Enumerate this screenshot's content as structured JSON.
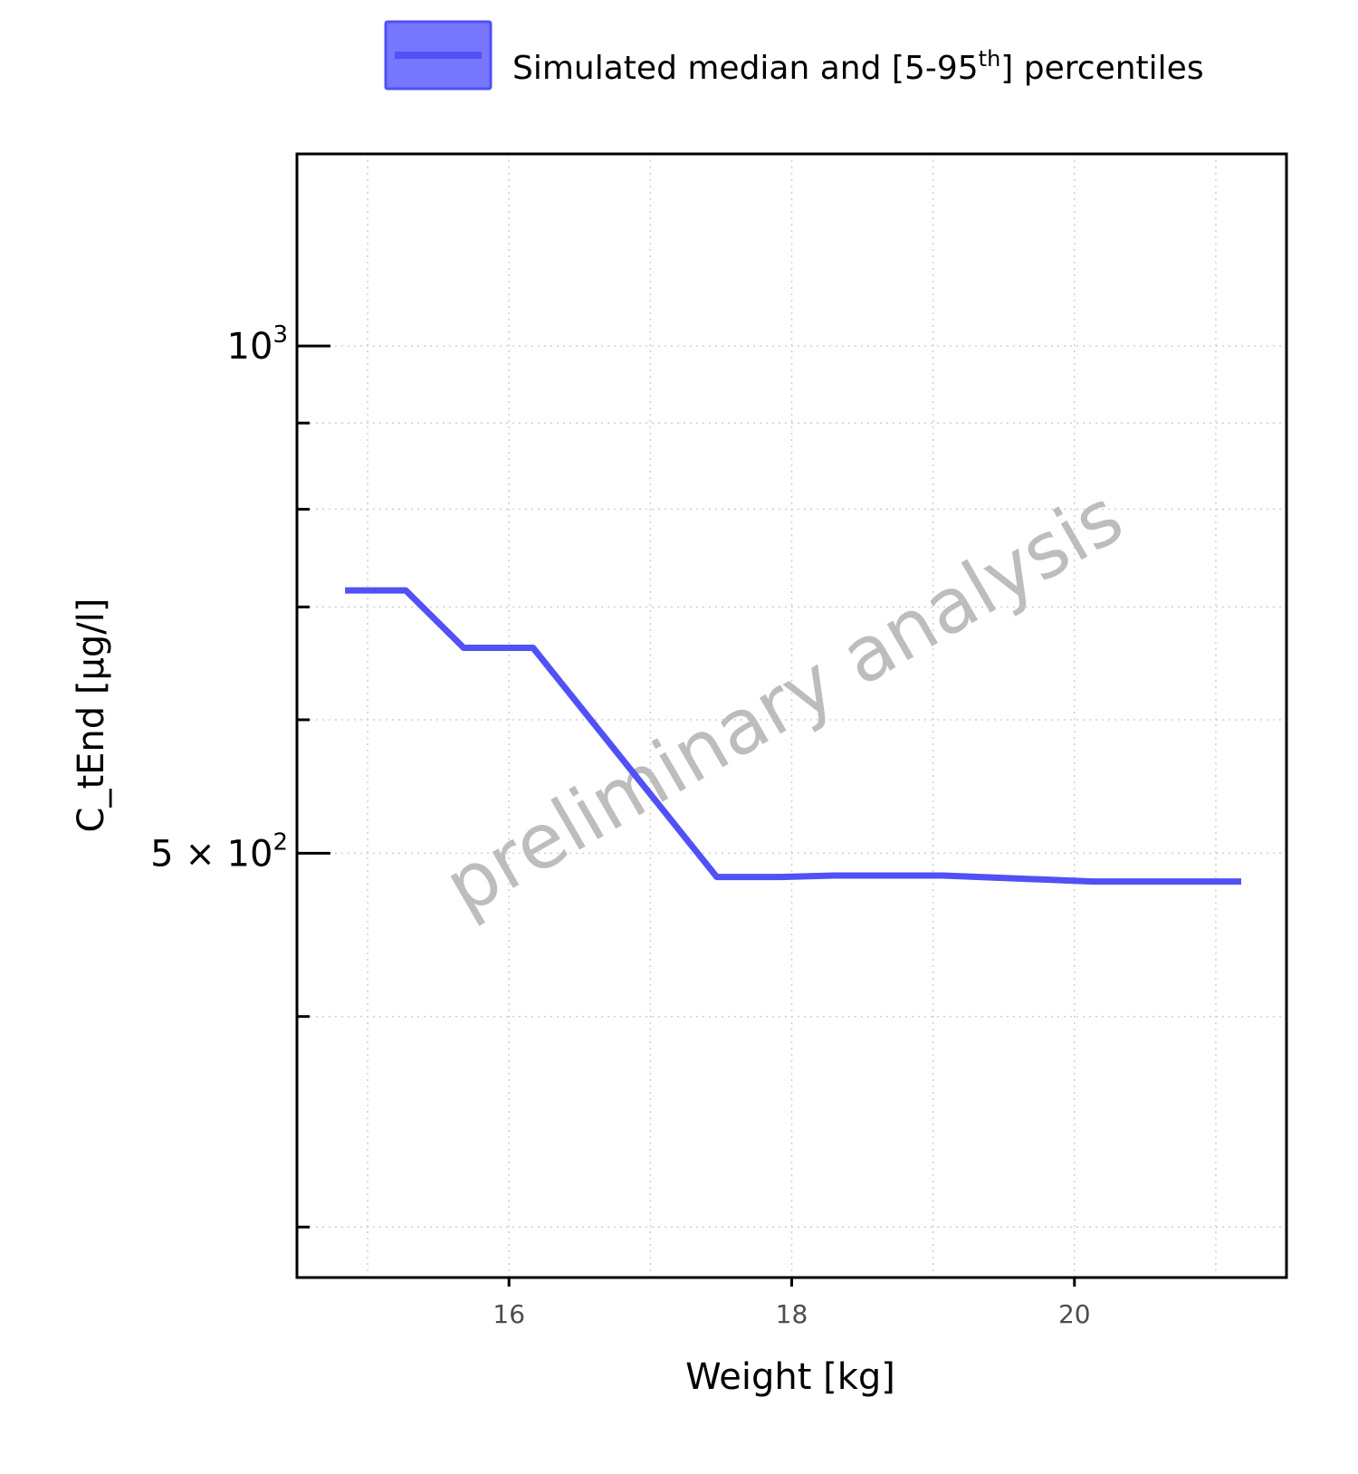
{
  "chart_data": {
    "type": "line",
    "title": "",
    "xlabel": "Weight [kg]",
    "ylabel": "C_tEnd [µg/l]",
    "xlim": [
      14.5,
      21.5
    ],
    "ylim": [
      280,
      1300
    ],
    "log_y": true,
    "grid": true,
    "legend_position": "top",
    "watermark": "preliminary analysis",
    "x_ticks": [
      16,
      18,
      20
    ],
    "x_tick_labels": [
      "16",
      "18",
      "20"
    ],
    "y_ticks_major": [
      1000,
      500
    ],
    "y_tick_labels": {
      "1000": {
        "base": "10",
        "exp": "3"
      },
      "500": {
        "base": "5 × 10",
        "exp": "2"
      }
    },
    "y_ticks_minor": [
      300,
      400,
      600,
      700,
      800,
      900
    ],
    "series": [
      {
        "name": "Simulated median and [5-95th] percentiles",
        "legend_main": "Simulated median and [5-95",
        "legend_sup": "th",
        "legend_tail": "] percentiles",
        "color": "#5151f5",
        "fill_color": "#7676ff",
        "x": [
          14.84,
          15.27,
          15.68,
          16.17,
          17.47,
          17.92,
          18.3,
          19.07,
          20.13,
          21.18
        ],
        "y": [
          716,
          716,
          662,
          662,
          484,
          484,
          485,
          485,
          481,
          481
        ]
      }
    ]
  }
}
